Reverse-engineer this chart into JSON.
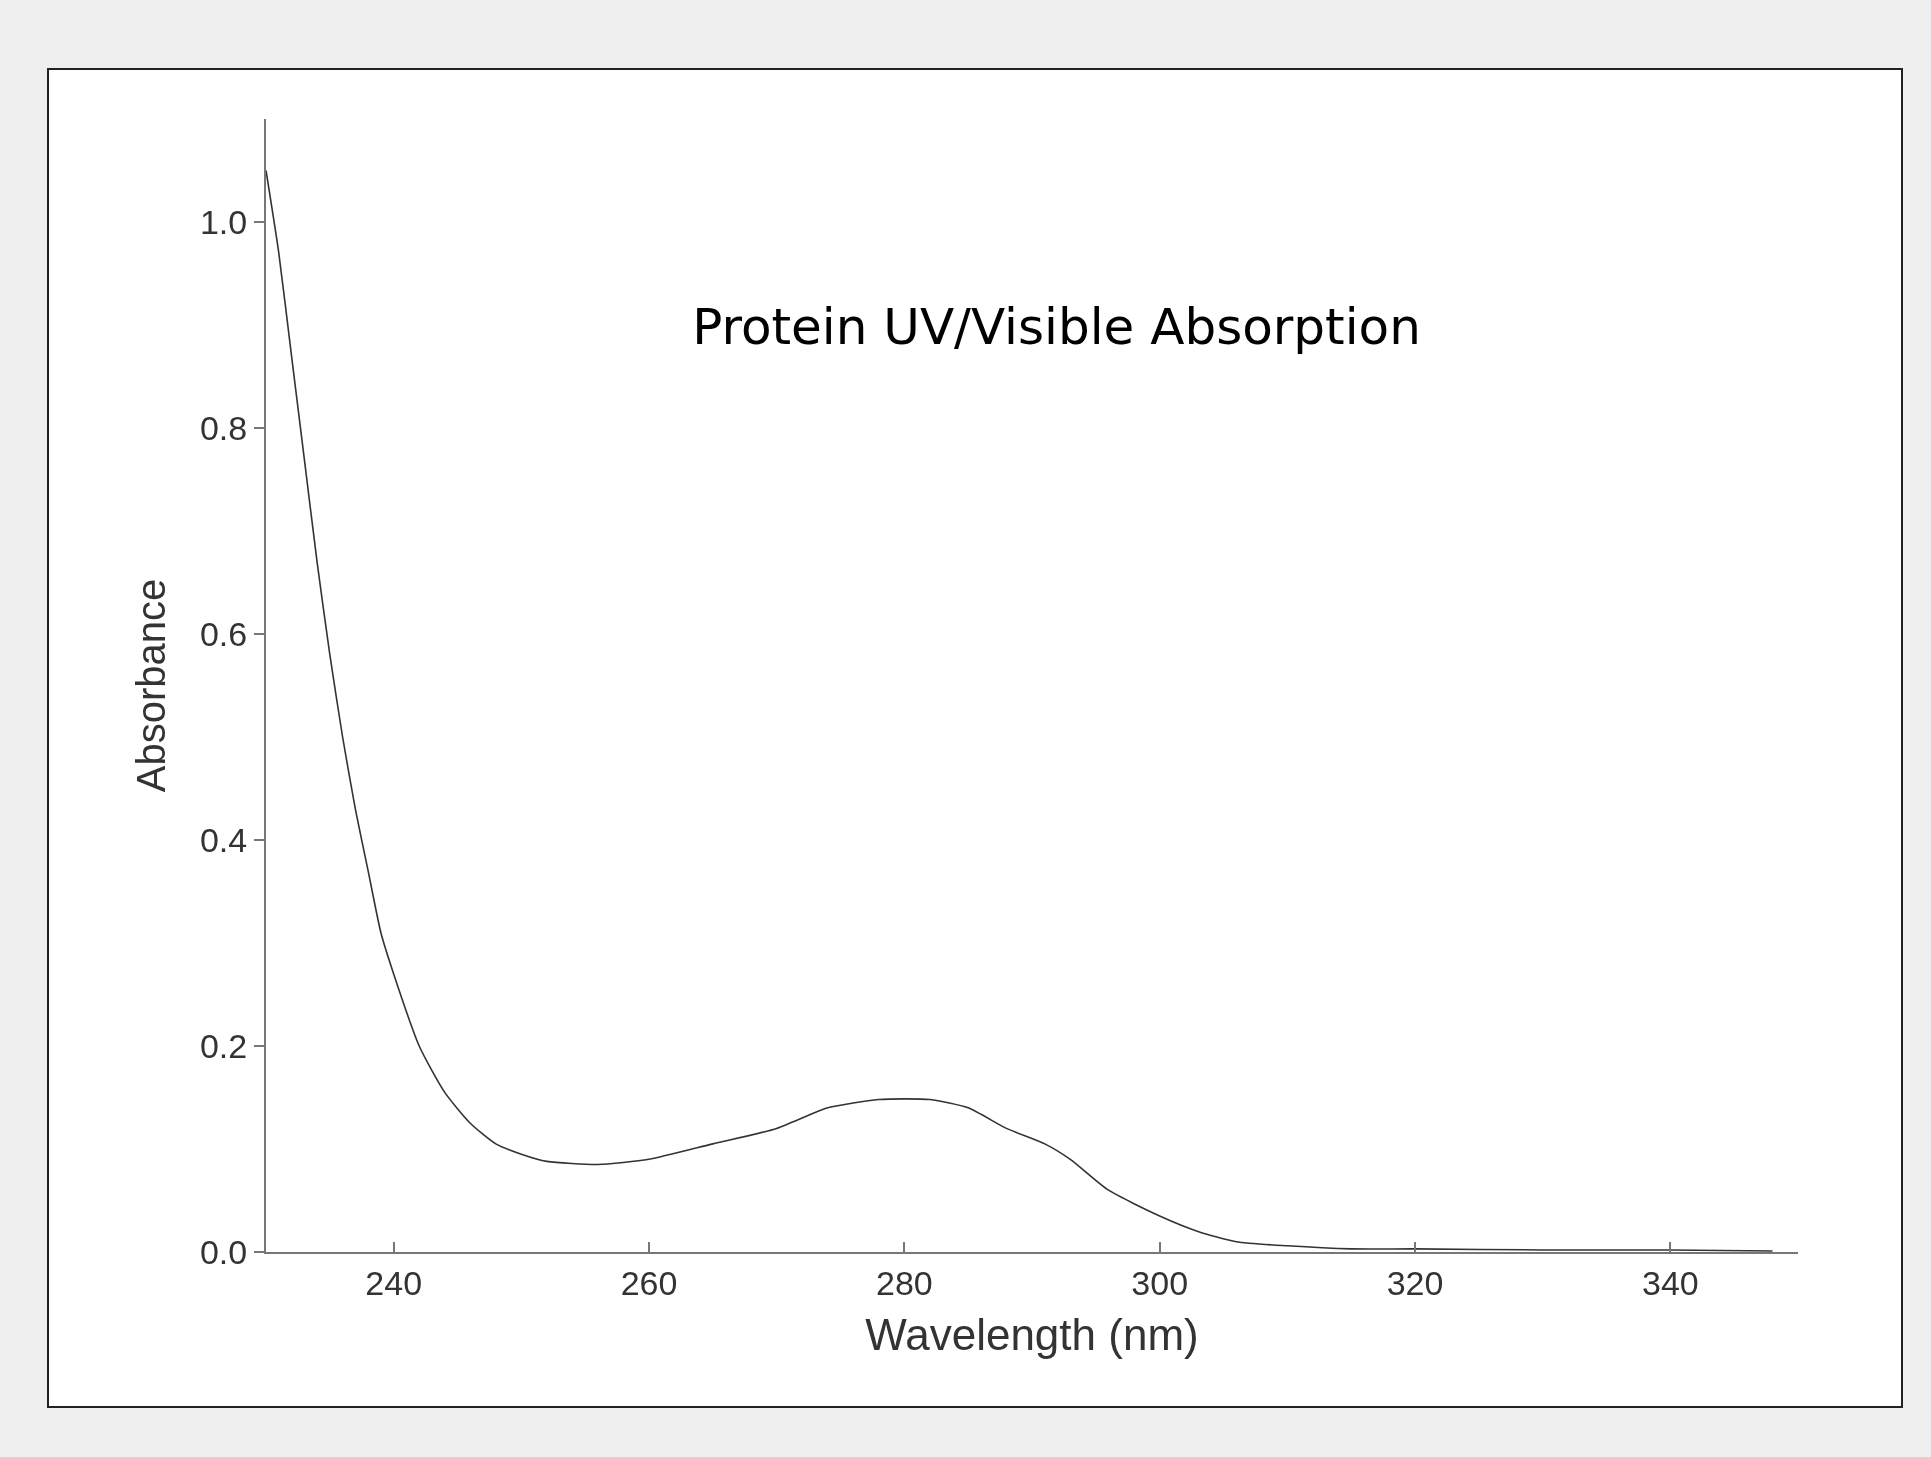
{
  "chart_data": {
    "type": "line",
    "title": "Protein UV/Visible Absorption",
    "xlabel": "Wavelength (nm)",
    "ylabel": "Absorbance",
    "x": [
      230,
      231,
      232,
      233,
      234,
      235,
      236,
      237,
      238,
      239,
      240,
      242,
      244,
      246,
      248,
      250,
      252,
      256,
      260,
      265,
      270,
      274,
      278,
      282,
      285,
      288,
      291,
      293,
      296,
      300,
      303,
      306,
      310,
      315,
      320,
      330,
      340,
      348
    ],
    "series": [
      {
        "color": "#333333",
        "values": [
          1.05,
          0.97,
          0.87,
          0.77,
          0.67,
          0.58,
          0.5,
          0.43,
          0.37,
          0.31,
          0.27,
          0.2,
          0.155,
          0.125,
          0.105,
          0.095,
          0.088,
          0.085,
          0.09,
          0.105,
          0.12,
          0.14,
          0.148,
          0.148,
          0.14,
          0.12,
          0.105,
          0.09,
          0.06,
          0.035,
          0.02,
          0.01,
          0.006,
          0.003,
          0.003,
          0.002,
          0.002,
          0.001
        ]
      }
    ],
    "xlim": [
      230,
      350
    ],
    "ylim": [
      0,
      1.1
    ],
    "xticks": [
      240,
      260,
      280,
      300,
      320,
      340
    ],
    "yticks": [
      {
        "value": 0,
        "label": "0.0"
      },
      0.2,
      0.4,
      0.6,
      0.8,
      {
        "value": 1,
        "label": "1.0"
      }
    ],
    "grid": false,
    "marker": "none",
    "line_style": "solid"
  }
}
